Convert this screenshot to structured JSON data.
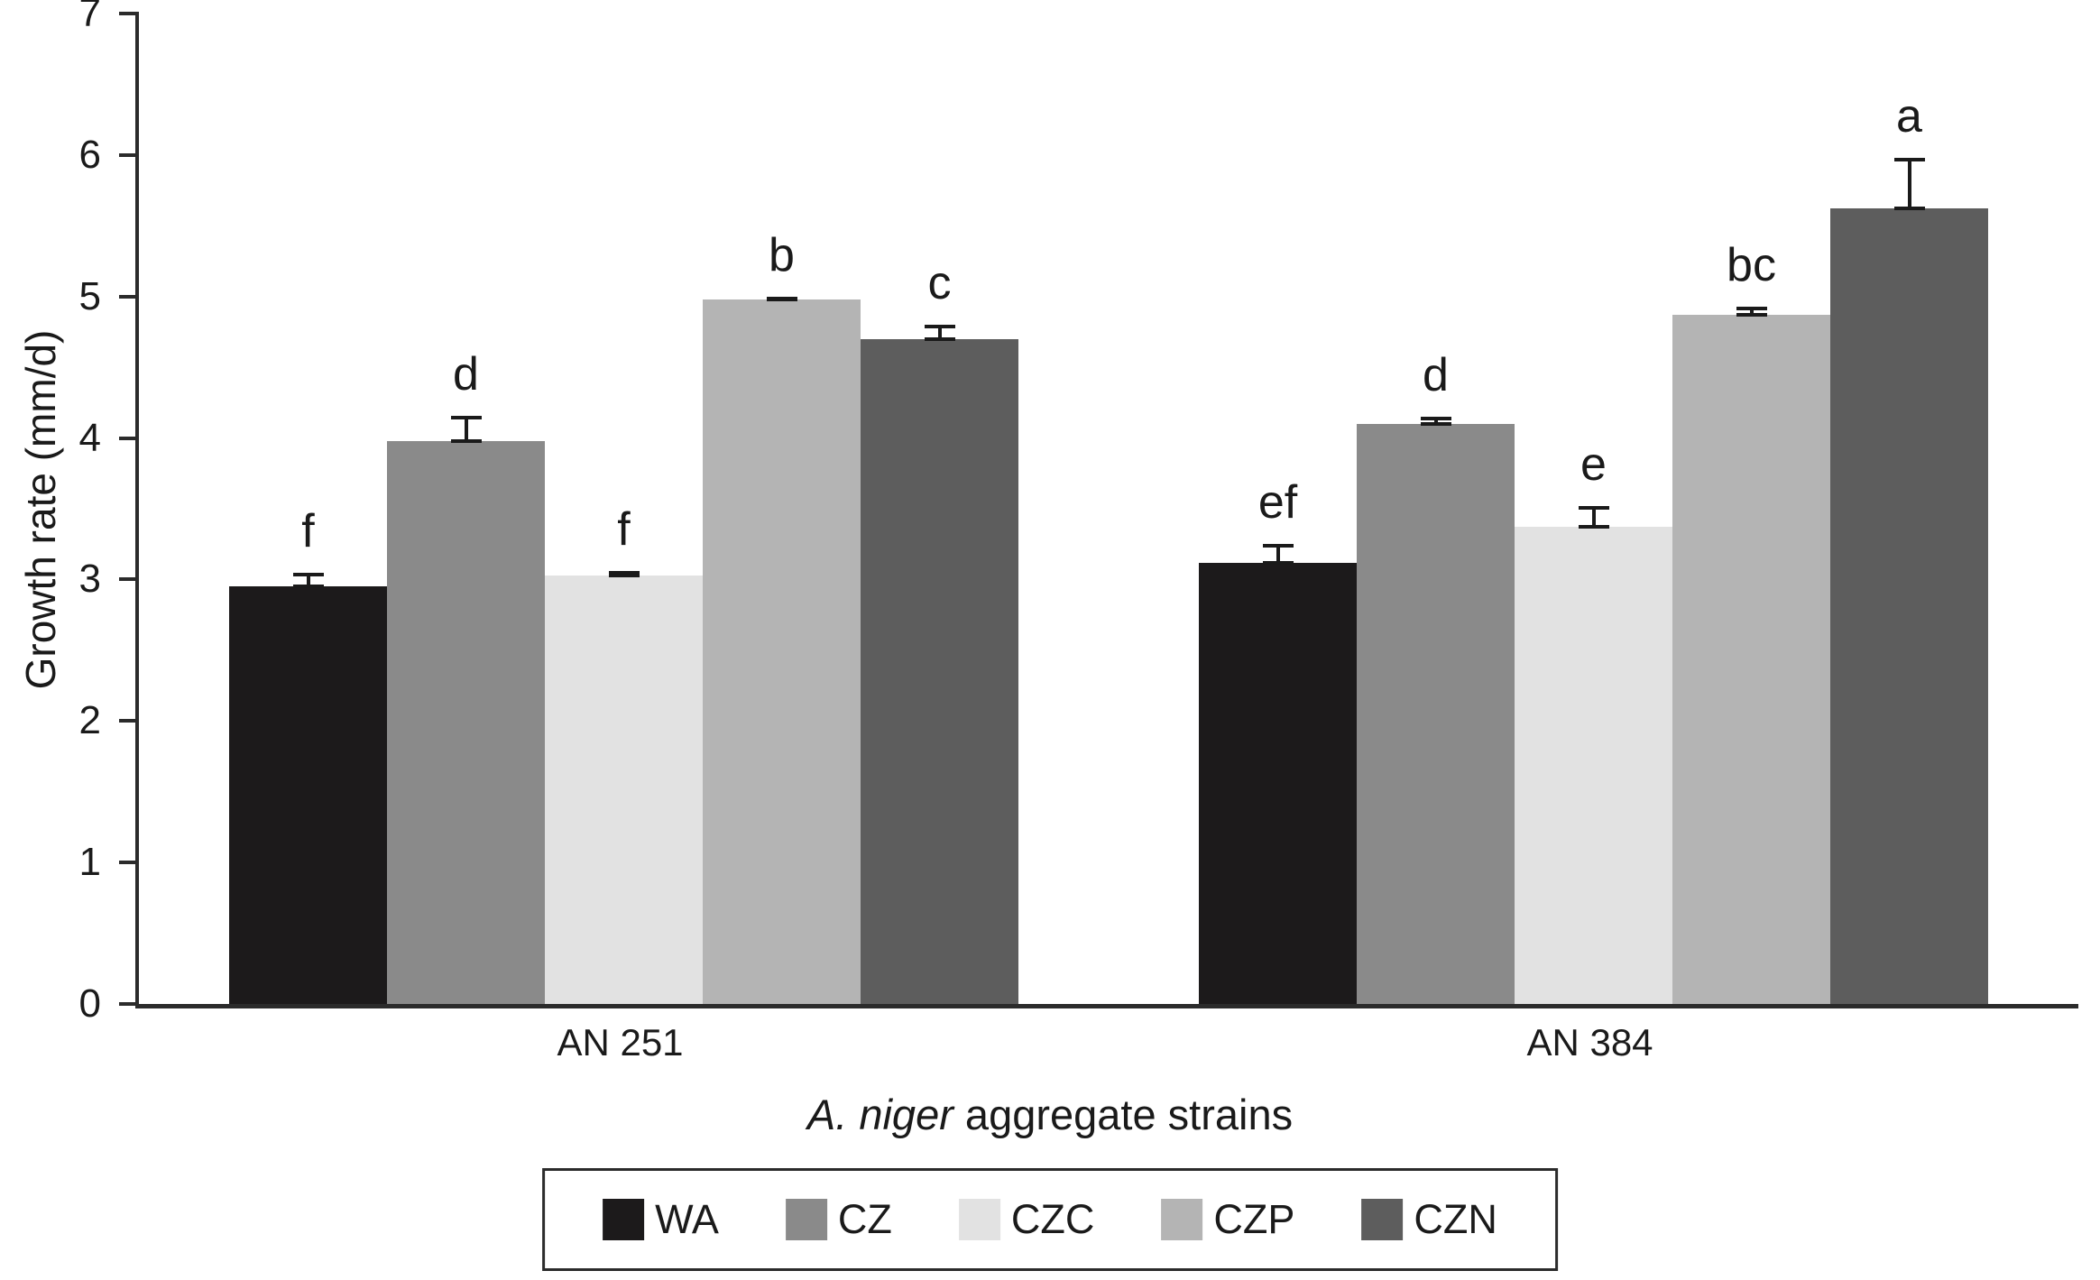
{
  "chart_data": {
    "type": "bar",
    "title": "",
    "ylabel": "Growth rate (mm/d)",
    "xlabel_italic": "A. niger",
    "xlabel_rest": " aggregate strains",
    "ylim": [
      0,
      7
    ],
    "ytick_step": 1,
    "grid": false,
    "legend_position": "bottom",
    "categories": [
      "AN 251",
      "AN 384"
    ],
    "series": [
      {
        "name": "WA",
        "color": "#1c1a1b",
        "values": [
          2.95,
          3.12
        ],
        "errors": [
          0.1,
          0.13
        ],
        "letters": [
          "f",
          "ef"
        ]
      },
      {
        "name": "CZ",
        "color": "#8a8a8a",
        "values": [
          3.98,
          4.1
        ],
        "errors": [
          0.18,
          0.05
        ],
        "letters": [
          "d",
          "d"
        ]
      },
      {
        "name": "CZC",
        "color": "#e2e2e2",
        "values": [
          3.03,
          3.37
        ],
        "errors": [
          0.03,
          0.15
        ],
        "letters": [
          "f",
          "e"
        ]
      },
      {
        "name": "CZP",
        "color": "#b4b4b4",
        "values": [
          4.98,
          4.87
        ],
        "errors": [
          0.02,
          0.06
        ],
        "letters": [
          "b",
          "bc"
        ]
      },
      {
        "name": "CZN",
        "color": "#5d5d5d",
        "values": [
          4.7,
          5.62
        ],
        "errors": [
          0.1,
          0.36
        ],
        "letters": [
          "c",
          "a"
        ]
      }
    ]
  }
}
